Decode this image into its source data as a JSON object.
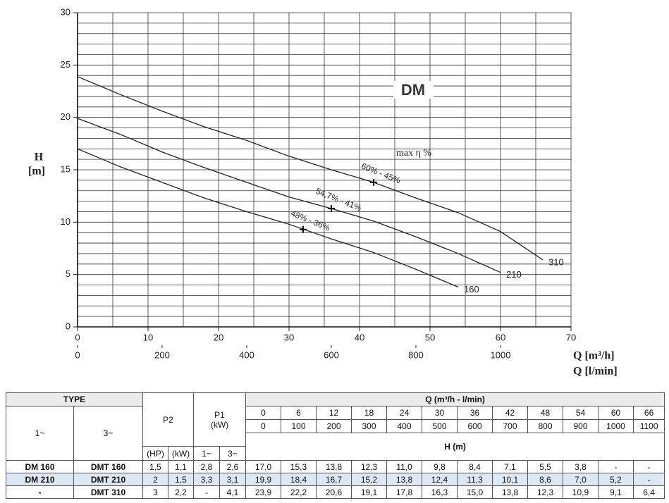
{
  "chart_data": {
    "type": "line",
    "title": "DM",
    "ylabel": "H",
    "yunit": "[m]",
    "xlabel": "Q [m³/h]",
    "x2label": "Q [l/min]",
    "x": [
      0,
      6,
      12,
      18,
      24,
      30,
      36,
      42,
      48,
      54,
      60,
      66
    ],
    "series": [
      {
        "name": "160",
        "color": "#222222",
        "values": [
          17.0,
          15.3,
          13.8,
          12.3,
          11.0,
          9.8,
          8.4,
          7.1,
          5.5,
          3.8,
          null,
          null
        ]
      },
      {
        "name": "210",
        "color": "#222222",
        "values": [
          19.9,
          18.4,
          16.7,
          15.2,
          13.8,
          12.4,
          11.3,
          10.1,
          8.6,
          7.0,
          5.2,
          null
        ]
      },
      {
        "name": "310",
        "color": "#222222",
        "values": [
          23.9,
          22.2,
          20.6,
          19.1,
          17.8,
          16.3,
          15.0,
          13.8,
          12.3,
          10.9,
          9.1,
          6.4
        ]
      }
    ],
    "annotation_title": "max η %",
    "annotations": [
      {
        "text": "48% - 36%",
        "x": 32,
        "y": 9.3
      },
      {
        "text": "54,7% - 41%",
        "x": 36,
        "y": 11.3
      },
      {
        "text": "60% - 45%",
        "x": 42,
        "y": 13.8
      }
    ],
    "xlim": [
      0,
      70
    ],
    "xticks": [
      0,
      10,
      20,
      30,
      40,
      50,
      60,
      70
    ],
    "x2lim": [
      0,
      1166.67
    ],
    "x2ticks": [
      0,
      200,
      400,
      600,
      800,
      1000
    ],
    "ylim": [
      0,
      30
    ],
    "yticks": [
      0,
      5,
      10,
      15,
      20,
      25,
      30
    ],
    "grid": true,
    "grid_x_step": 5,
    "grid_y_step": 1
  },
  "table": {
    "header": {
      "type": "TYPE",
      "single_phase": "1~",
      "three_phase": "3~",
      "p2": "P2",
      "p2_hp": "(HP)",
      "p2_kw": "(kW)",
      "p1": "P1",
      "p1_unit": "(kW)",
      "p1_single": "1~",
      "p1_three": "3~",
      "q": "Q (m³/h - l/min)",
      "q_m3h": [
        "0",
        "6",
        "12",
        "18",
        "24",
        "30",
        "36",
        "42",
        "48",
        "54",
        "60",
        "66"
      ],
      "q_lmin": [
        "0",
        "100",
        "200",
        "300",
        "400",
        "500",
        "600",
        "700",
        "800",
        "900",
        "1000",
        "1100"
      ],
      "h": "H (m)"
    },
    "rows": [
      [
        "DM 160",
        "DMT 160",
        "1,5",
        "1,1",
        "2,8",
        "2,6",
        "17,0",
        "15,3",
        "13,8",
        "12,3",
        "11,0",
        "9,8",
        "8,4",
        "7,1",
        "5,5",
        "3,8",
        "-",
        "-"
      ],
      [
        "DM 210",
        "DMT 210",
        "2",
        "1,5",
        "3,3",
        "3,1",
        "19,9",
        "18,4",
        "16,7",
        "15,2",
        "13,8",
        "12,4",
        "11,3",
        "10,1",
        "8,6",
        "7,0",
        "5,2",
        "-"
      ],
      [
        "-",
        "DMT 310",
        "3",
        "2,2",
        "-",
        "4,1",
        "23,9",
        "22,2",
        "20,6",
        "19,1",
        "17,8",
        "16,3",
        "15,0",
        "13,8",
        "12,3",
        "10,9",
        "9,1",
        "6,4"
      ]
    ]
  }
}
